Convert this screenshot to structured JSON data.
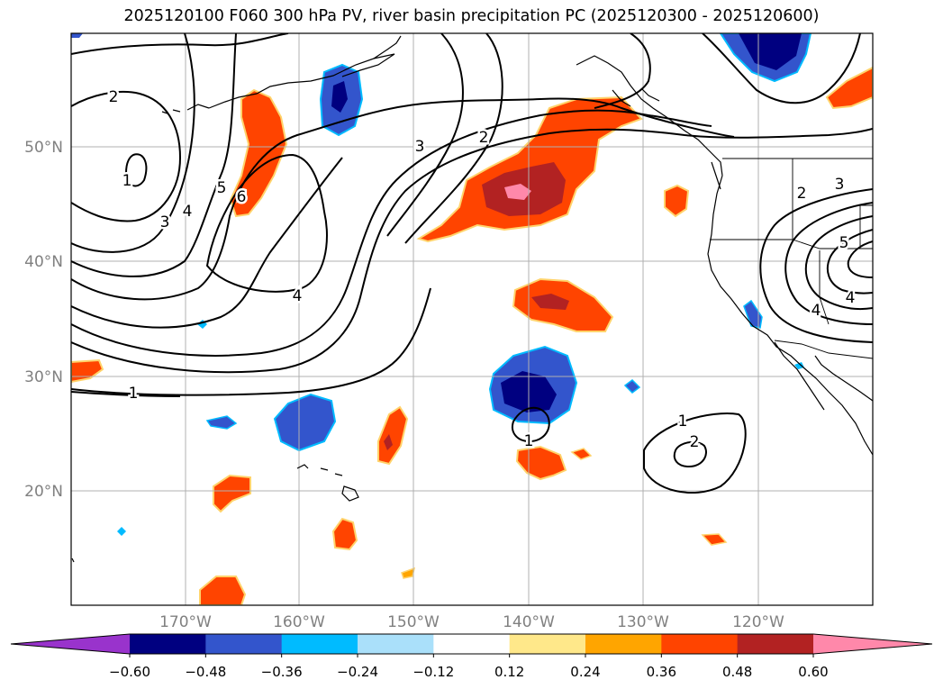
{
  "title": "2025120100 F060 300 hPa PV, river basin precipitation PC (2025120300 - 2025120600)",
  "latitude_labels": [
    "50°N",
    "40°N",
    "30°N",
    "20°N"
  ],
  "longitude_labels": [
    "170°W",
    "160°W",
    "150°W",
    "140°W",
    "130°W",
    "120°W"
  ],
  "contour_labels": [
    "2",
    "1",
    "3",
    "4",
    "5",
    "6",
    "3",
    "2",
    "4",
    "1",
    "1",
    "1",
    "2",
    "2",
    "3",
    "4",
    "4",
    "5"
  ],
  "colorbar": {
    "ticks": [
      "−0.60",
      "−0.48",
      "−0.36",
      "−0.24",
      "−0.12",
      "0.12",
      "0.24",
      "0.36",
      "0.48",
      "0.60"
    ],
    "colors": [
      "#9933cc",
      "#000080",
      "#3355cc",
      "#00bbff",
      "#aae0fa",
      "#ffffff",
      "#ffe88a",
      "#ffa500",
      "#ff4400",
      "#b22222",
      "#ff88aa"
    ]
  },
  "colors": {
    "coast": "#000000",
    "grid": "#b0b0b0",
    "pv_contour": "#000000"
  }
}
